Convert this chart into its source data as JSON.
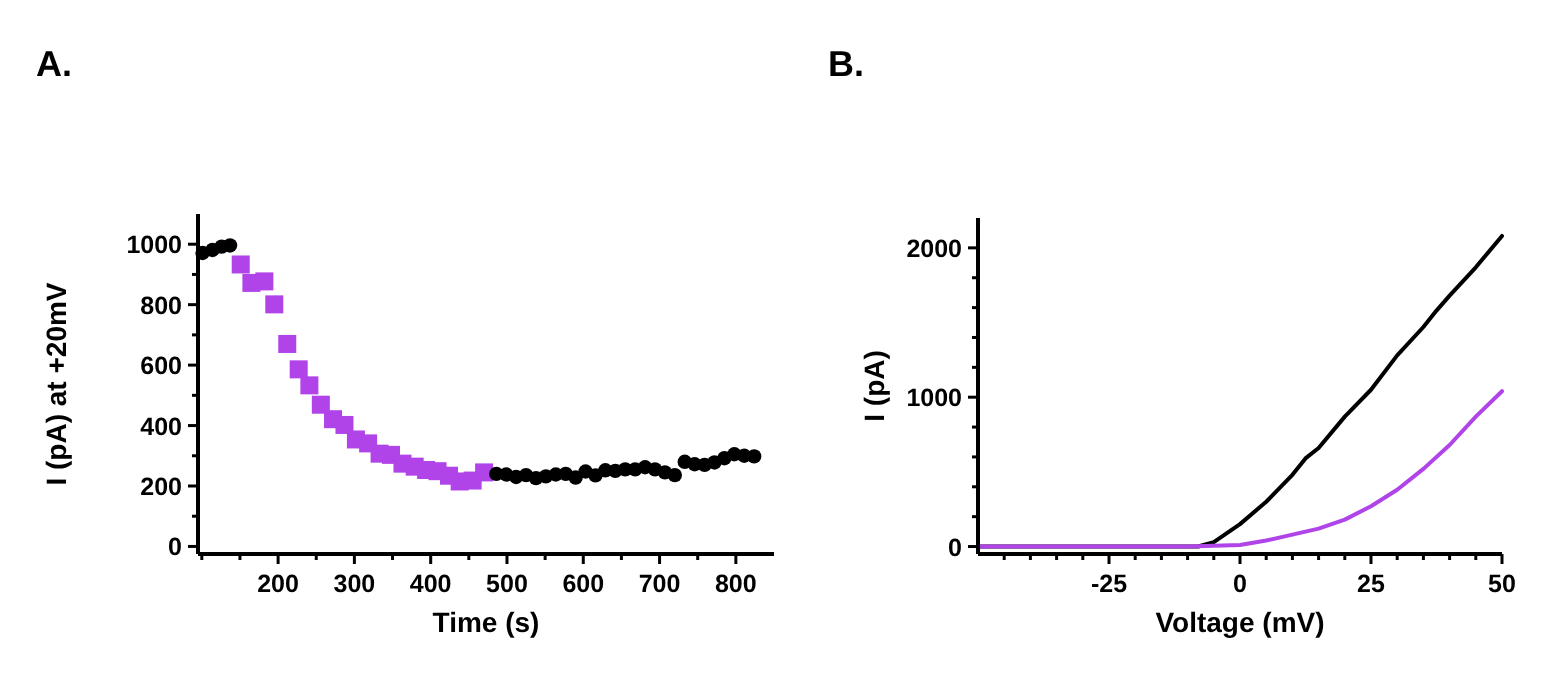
{
  "chart_data": [
    {
      "type": "scatter",
      "title": "A.",
      "xlabel": "Time (s)",
      "ylabel": "I (pA) at +20mV",
      "xlim": [
        95,
        850
      ],
      "ylim": [
        -25,
        1100
      ],
      "xticks": [
        {
          "value": 100,
          "label": null
        },
        {
          "value": 150,
          "label": null
        },
        200,
        {
          "value": 250,
          "label": null
        },
        300,
        {
          "value": 350,
          "label": null
        },
        400,
        {
          "value": 450,
          "label": null
        },
        500,
        {
          "value": 550,
          "label": null
        },
        600,
        {
          "value": 650,
          "label": null
        },
        700,
        {
          "value": 750,
          "label": null
        },
        800
      ],
      "yticks": [
        0,
        {
          "value": 100,
          "label": null
        },
        200,
        {
          "value": 300,
          "label": null
        },
        400,
        {
          "value": 500,
          "label": null
        },
        600,
        {
          "value": 700,
          "label": null
        },
        800,
        {
          "value": 900,
          "label": null
        },
        1000
      ],
      "series": [
        {
          "color": "#000000",
          "marker": "circle",
          "x": [
            101,
            114,
            126,
            137
          ],
          "values": [
            971,
            981,
            992,
            996
          ]
        },
        {
          "color": "#b044e8",
          "marker": "square",
          "x": [
            151,
            165,
            182,
            195,
            212,
            227,
            241,
            256,
            272,
            287,
            302,
            318,
            333,
            348,
            363,
            379,
            394,
            409,
            424,
            438,
            455,
            470
          ],
          "values": [
            933,
            872,
            877,
            801,
            670,
            586,
            533,
            469,
            421,
            402,
            354,
            341,
            307,
            303,
            274,
            264,
            253,
            249,
            234,
            215,
            218,
            245
          ]
        },
        {
          "color": "#000000",
          "marker": "circle",
          "x": [
            486,
            499,
            512,
            525,
            538,
            551,
            564,
            577,
            590,
            603,
            616,
            629,
            642,
            655,
            668,
            681,
            694,
            707,
            720,
            733,
            746,
            759,
            772,
            785,
            798,
            811,
            824
          ],
          "values": [
            240,
            238,
            230,
            236,
            226,
            232,
            238,
            240,
            228,
            248,
            235,
            252,
            250,
            255,
            255,
            262,
            255,
            245,
            236,
            280,
            272,
            270,
            278,
            292,
            305,
            300,
            298
          ]
        }
      ]
    },
    {
      "type": "line",
      "title": "B.",
      "xlabel": "Voltage (mV)",
      "ylabel": "I (pA)",
      "xlim": [
        -50,
        50
      ],
      "ylim": [
        -50,
        2200
      ],
      "xticks": [
        {
          "value": -45,
          "label": null
        },
        {
          "value": -40,
          "label": null
        },
        {
          "value": -35,
          "label": null
        },
        {
          "value": -30,
          "label": null
        },
        -25,
        {
          "value": -20,
          "label": null
        },
        {
          "value": -15,
          "label": null
        },
        {
          "value": -10,
          "label": null
        },
        {
          "value": -5,
          "label": null
        },
        0,
        {
          "value": 5,
          "label": null
        },
        {
          "value": 10,
          "label": null
        },
        {
          "value": 15,
          "label": null
        },
        {
          "value": 20,
          "label": null
        },
        25,
        {
          "value": 30,
          "label": null
        },
        {
          "value": 35,
          "label": null
        },
        {
          "value": 40,
          "label": null
        },
        {
          "value": 45,
          "label": null
        },
        50
      ],
      "yticks": [
        0,
        {
          "value": 200,
          "label": null
        },
        {
          "value": 400,
          "label": null
        },
        {
          "value": 600,
          "label": null
        },
        {
          "value": 800,
          "label": null
        },
        1000,
        {
          "value": 1200,
          "label": null
        },
        {
          "value": 1400,
          "label": null
        },
        {
          "value": 1600,
          "label": null
        },
        {
          "value": 1800,
          "label": null
        },
        2000
      ],
      "series": [
        {
          "color": "#000000",
          "x": [
            -50,
            -40,
            -30,
            -20,
            -10,
            -8,
            -5,
            0,
            5,
            10,
            12.5,
            15,
            20,
            25,
            30,
            35,
            37.5,
            40,
            45,
            50
          ],
          "values": [
            0,
            0,
            0,
            0,
            0,
            0,
            30,
            150,
            300,
            480,
            590,
            660,
            870,
            1050,
            1280,
            1470,
            1580,
            1680,
            1870,
            2080
          ]
        },
        {
          "color": "#b044e8",
          "x": [
            -50,
            -25,
            -10,
            0,
            5,
            10,
            15,
            20,
            25,
            30,
            35,
            40,
            45,
            50
          ],
          "values": [
            0,
            0,
            0,
            10,
            40,
            80,
            120,
            180,
            270,
            380,
            520,
            680,
            870,
            1040
          ]
        }
      ]
    }
  ]
}
